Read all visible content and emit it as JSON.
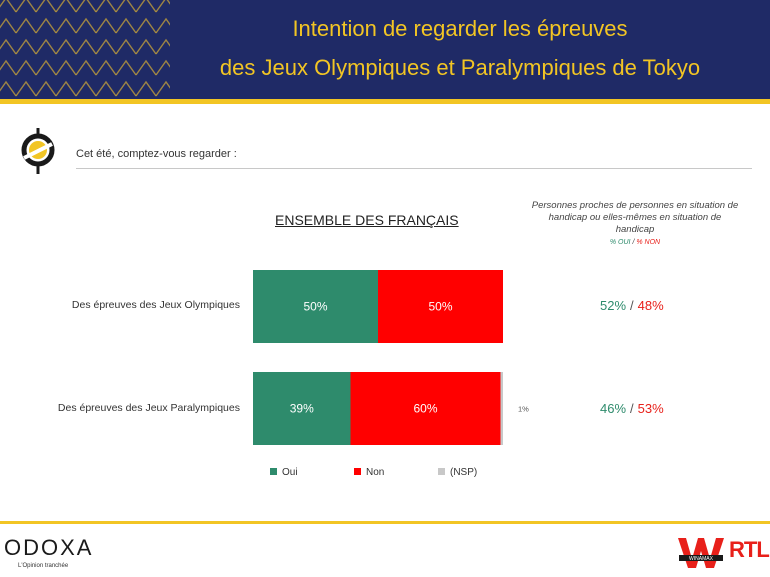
{
  "header": {
    "title_line_1": "Intention de regarder les épreuves",
    "title_line_2": "des Jeux Olympiques et Paralympiques de Tokyo"
  },
  "question": {
    "text": "Cet été, comptez-vous regarder :"
  },
  "side_note": {
    "text": "Personnes proches de personnes en situation de handicap ou elles-mêmes en situation de handicap",
    "legend_oui": "% OUI",
    "legend_sep": "/",
    "legend_non": "% NON"
  },
  "colors": {
    "oui": "#2e8b6c",
    "non": "#ff0000",
    "nsp": "#c8c8c8",
    "header": "#1f2a66",
    "accent": "#f2c524"
  },
  "results": [
    {
      "oui": "52%",
      "sep": "/",
      "non": "48%"
    },
    {
      "oui": "46%",
      "sep": "/",
      "non": "53%"
    }
  ],
  "chart_data": {
    "type": "bar",
    "orientation": "horizontal",
    "stacked": true,
    "title": "ENSEMBLE DES FRANÇAIS",
    "categories": [
      "Des épreuves des Jeux Olympiques",
      "Des épreuves des Jeux Paralympiques"
    ],
    "series": [
      {
        "name": "Oui",
        "values": [
          50,
          39
        ],
        "labels": [
          "50%",
          "39%"
        ]
      },
      {
        "name": "Non",
        "values": [
          50,
          60
        ],
        "labels": [
          "50%",
          "60%"
        ]
      },
      {
        "name": "(NSP)",
        "values": [
          0,
          1
        ],
        "labels": [
          "",
          "1%"
        ]
      }
    ],
    "xlim": [
      0,
      100
    ],
    "grid": false,
    "legend_position": "bottom"
  },
  "footer": {
    "brand": "ODOXA",
    "tagline": "L'Opinion tranchée",
    "partner_1": "WINAMAX",
    "partner_2": "RTL"
  }
}
